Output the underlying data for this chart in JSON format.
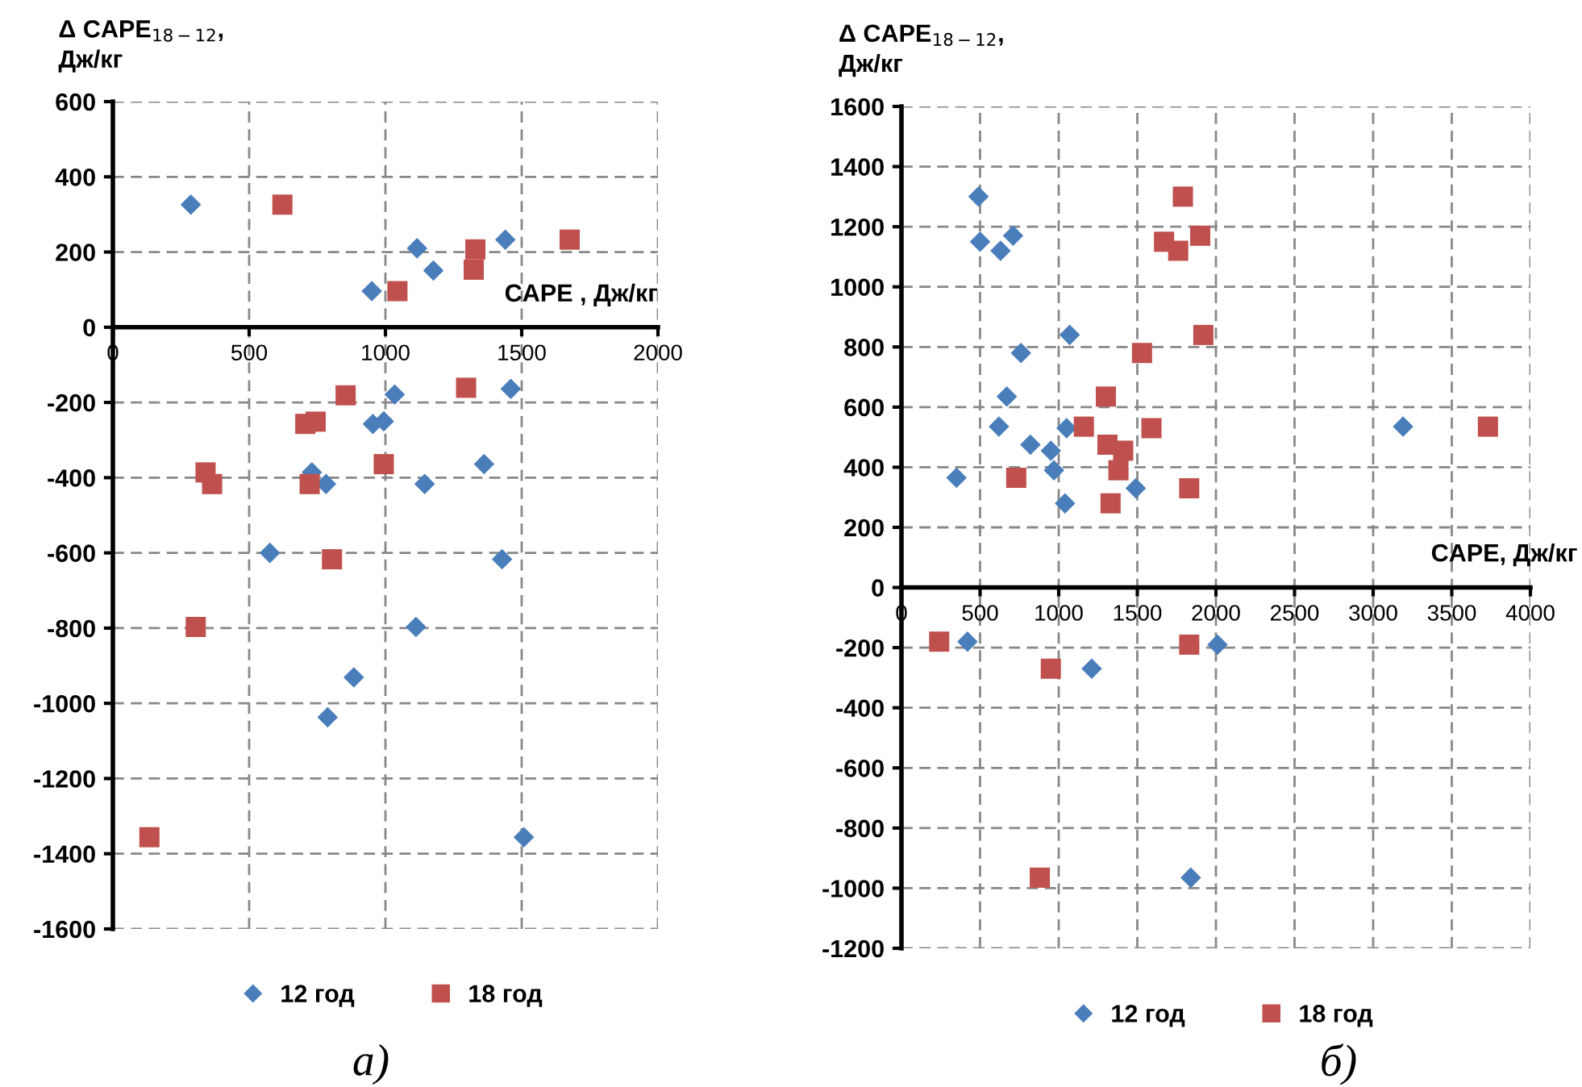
{
  "chart_data": [
    {
      "type": "scatter",
      "xlabel": "CAPE , Дж/кг",
      "ylabel": "Δ CAPE$_{18−12}$,\nДж/кг",
      "xlim": [
        0,
        2000
      ],
      "ylim": [
        -1600,
        600
      ],
      "xticks": [
        0,
        500,
        1000,
        1500,
        2000
      ],
      "yticks": [
        -1600,
        -1400,
        -1200,
        -1000,
        -800,
        -600,
        -400,
        -200,
        0,
        200,
        400,
        600
      ],
      "grid": true,
      "legend": "bottom",
      "annotations": [
        "а)"
      ],
      "series": [
        {
          "name": "12 год",
          "color": "#4a7ebb",
          "marker": "diamond",
          "x": [
            286,
            950,
            1116,
            1176,
            1440,
            1460,
            1034,
            954,
            994,
            730,
            782,
            1144,
            1362,
            576,
            1428,
            1112,
            884,
            788,
            1508
          ],
          "values": [
            326,
            96,
            210,
            151,
            233,
            -164,
            -179,
            -257,
            -250,
            -386,
            -417,
            -417,
            -364,
            -600,
            -617,
            -797,
            -931,
            -1037,
            -1356
          ]
        },
        {
          "name": "18 год",
          "color": "#c0504d",
          "marker": "square",
          "x": [
            622,
            1044,
            1330,
            1324,
            1676,
            1296,
            854,
            706,
            744,
            994,
            340,
            364,
            722,
            804,
            304,
            134
          ],
          "values": [
            326,
            96,
            207,
            153,
            233,
            -161,
            -181,
            -257,
            -251,
            -364,
            -386,
            -417,
            -417,
            -617,
            -797,
            -1356
          ]
        }
      ]
    },
    {
      "type": "scatter",
      "xlabel": "CAPE, Дж/кг",
      "ylabel": "Δ CAPE$_{18−12}$,\nДж/кг",
      "xlim": [
        0,
        4000
      ],
      "ylim": [
        -1200,
        1600
      ],
      "xticks": [
        0,
        500,
        1000,
        1500,
        2000,
        2500,
        3000,
        3500,
        4000
      ],
      "yticks": [
        -1200,
        -1000,
        -800,
        -600,
        -400,
        -200,
        0,
        200,
        400,
        600,
        800,
        1000,
        1200,
        1400,
        1600
      ],
      "grid": true,
      "legend": "bottom",
      "annotations": [
        "б)"
      ],
      "series": [
        {
          "name": "12 год",
          "color": "#4a7ebb",
          "marker": "diamond",
          "x": [
            490,
            500,
            630,
            710,
            760,
            1070,
            670,
            620,
            820,
            950,
            970,
            1050,
            1040,
            1490,
            350,
            3190,
            420,
            1210,
            2010,
            1840
          ],
          "values": [
            1300,
            1150,
            1120,
            1170,
            780,
            840,
            635,
            535,
            475,
            455,
            390,
            530,
            280,
            330,
            365,
            535,
            -180,
            -270,
            -190,
            -965
          ]
        },
        {
          "name": "18 год",
          "color": "#c0504d",
          "marker": "square",
          "x": [
            1790,
            1670,
            1760,
            1900,
            1920,
            1530,
            1300,
            1160,
            1590,
            1310,
            1410,
            1380,
            1330,
            1830,
            730,
            3730,
            240,
            950,
            1830,
            880
          ],
          "values": [
            1300,
            1150,
            1120,
            1170,
            840,
            780,
            635,
            535,
            530,
            475,
            455,
            390,
            280,
            330,
            365,
            535,
            -180,
            -270,
            -190,
            -965
          ]
        }
      ]
    }
  ]
}
